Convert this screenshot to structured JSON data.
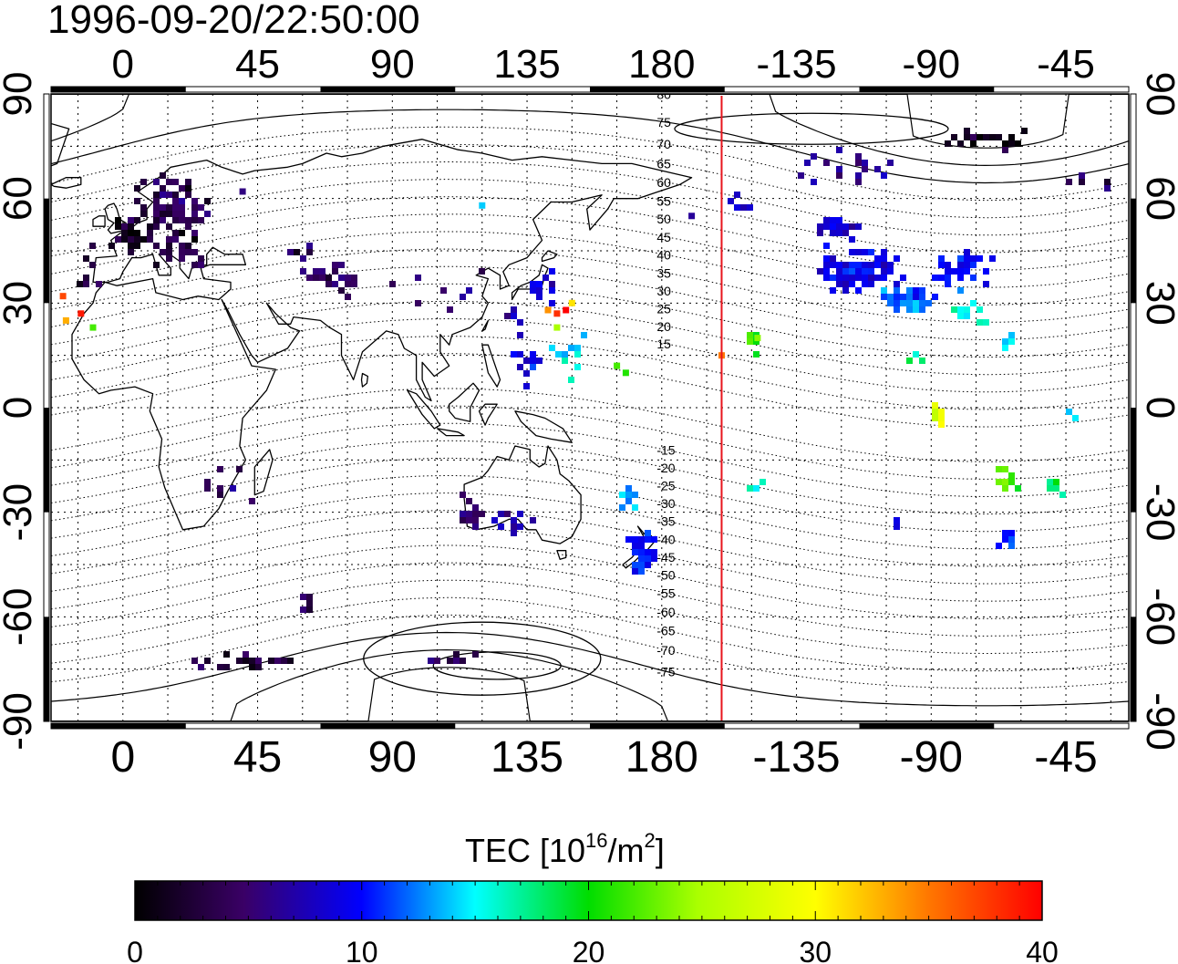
{
  "title": "1996-09-20/22:50:00",
  "map": {
    "top_lon_ticks": [
      "0",
      "45",
      "90",
      "135",
      "180",
      "-135",
      "-90",
      "-45"
    ],
    "bottom_lon_ticks": [
      "0",
      "45",
      "90",
      "135",
      "180",
      "-135",
      "-90",
      "-45"
    ],
    "left_lat_ticks": [
      "90",
      "60",
      "30",
      "0",
      "-30",
      "-60",
      "-90"
    ],
    "right_lat_ticks": [
      "90",
      "60",
      "30",
      "0",
      "-30",
      "-60",
      "-90"
    ],
    "lon_range": [
      -24,
      336
    ],
    "lat_range": [
      -90,
      90
    ],
    "grid": "dotted every 15 degrees",
    "contour_labels": [
      "80",
      "75",
      "70",
      "65",
      "60",
      "55",
      "50",
      "45",
      "40",
      "35",
      "30",
      "25",
      "20",
      "15",
      "-15",
      "-20",
      "-25",
      "-30",
      "-35",
      "-40",
      "-45",
      "-50",
      "-55",
      "-60",
      "-65",
      "-70",
      "-75"
    ],
    "contour_label_lats": [
      80,
      75,
      70,
      65,
      60,
      55,
      50,
      45,
      40,
      35,
      30,
      25,
      20,
      15,
      -15,
      -20,
      -25,
      -30,
      -35,
      -40,
      -45,
      -50,
      -55,
      -60,
      -65,
      -70,
      -75
    ],
    "terminator_lon": -160,
    "terminator_color": "#e8141c"
  },
  "chart_data": {
    "type": "heatmap",
    "title": "1996-09-20/22:50:00",
    "quantity": "TEC",
    "clusters": [
      {
        "lon": 15,
        "lat": 58,
        "tec": 3,
        "n": 90,
        "sx": 10,
        "sy": 8
      },
      {
        "lon": 2,
        "lat": 50,
        "tec": 1.5,
        "n": 30,
        "sx": 6,
        "sy": 4
      },
      {
        "lon": 20,
        "lat": 45,
        "tec": 3,
        "n": 20,
        "sx": 8,
        "sy": 5
      },
      {
        "lon": -12,
        "lat": 40,
        "tec": 2,
        "n": 8,
        "sx": 6,
        "sy": 6
      },
      {
        "lon": 70,
        "lat": 38,
        "tec": 4,
        "n": 25,
        "sx": 10,
        "sy": 4
      },
      {
        "lon": 60,
        "lat": 45,
        "tec": 3.5,
        "n": 6,
        "sx": 6,
        "sy": 3
      },
      {
        "lon": 110,
        "lat": 35,
        "tec": 4.5,
        "n": 8,
        "sx": 20,
        "sy": 8
      },
      {
        "lon": 140,
        "lat": 36,
        "tec": 8,
        "n": 12,
        "sx": 5,
        "sy": 4
      },
      {
        "lon": 130,
        "lat": 25,
        "tec": 6,
        "n": 6,
        "sx": 6,
        "sy": 5
      },
      {
        "lon": 150,
        "lat": 15,
        "tec": 15,
        "n": 12,
        "sx": 6,
        "sy": 6
      },
      {
        "lon": 135,
        "lat": 12,
        "tec": 9,
        "n": 10,
        "sx": 6,
        "sy": 6
      },
      {
        "lon": 128,
        "lat": -32,
        "tec": 6,
        "n": 15,
        "sx": 12,
        "sy": 4
      },
      {
        "lon": 115,
        "lat": -30,
        "tec": 4,
        "n": 12,
        "sx": 3,
        "sy": 4
      },
      {
        "lon": 172,
        "lat": -42,
        "tec": 10,
        "n": 30,
        "sx": 5,
        "sy": 6
      },
      {
        "lon": 168,
        "lat": -25,
        "tec": 12,
        "n": 10,
        "sx": 4,
        "sy": 3
      },
      {
        "lon": 30,
        "lat": -20,
        "tec": 4,
        "n": 8,
        "sx": 10,
        "sy": 10
      },
      {
        "lon": 60,
        "lat": -55,
        "tec": 2,
        "n": 6,
        "sx": 4,
        "sy": 2
      },
      {
        "lon": 40,
        "lat": -72,
        "tec": 2.5,
        "n": 25,
        "sx": 20,
        "sy": 2
      },
      {
        "lon": 110,
        "lat": -70,
        "tec": 3,
        "n": 8,
        "sx": 8,
        "sy": 2
      },
      {
        "lon": -115,
        "lat": 40,
        "tec": 9,
        "n": 110,
        "sx": 12,
        "sy": 5
      },
      {
        "lon": -100,
        "lat": 33,
        "tec": 12,
        "n": 50,
        "sx": 8,
        "sy": 4
      },
      {
        "lon": -80,
        "lat": 40,
        "tec": 10,
        "n": 35,
        "sx": 8,
        "sy": 6
      },
      {
        "lon": -122,
        "lat": 52,
        "tec": 8,
        "n": 40,
        "sx": 6,
        "sy": 3
      },
      {
        "lon": -120,
        "lat": 70,
        "tec": 6,
        "n": 18,
        "sx": 18,
        "sy": 5
      },
      {
        "lon": -80,
        "lat": 28,
        "tec": 16,
        "n": 12,
        "sx": 6,
        "sy": 3
      },
      {
        "lon": -70,
        "lat": 78,
        "tec": 1.5,
        "n": 18,
        "sx": 18,
        "sy": 3
      },
      {
        "lon": -65,
        "lat": 20,
        "tec": 14,
        "n": 5,
        "sx": 3,
        "sy": 3
      },
      {
        "lon": -88,
        "lat": 0,
        "tec": 28,
        "n": 6,
        "sx": 2,
        "sy": 5
      },
      {
        "lon": -65,
        "lat": -20,
        "tec": 22,
        "n": 10,
        "sx": 3,
        "sy": 3
      },
      {
        "lon": -50,
        "lat": -22,
        "tec": 17,
        "n": 8,
        "sx": 4,
        "sy": 3
      },
      {
        "lon": -65,
        "lat": -37,
        "tec": 10,
        "n": 10,
        "sx": 4,
        "sy": 3
      },
      {
        "lon": -150,
        "lat": 20,
        "tec": 22,
        "n": 6,
        "sx": 3,
        "sy": 3
      },
      {
        "lon": -150,
        "lat": -22,
        "tec": 16,
        "n": 4,
        "sx": 2,
        "sy": 2
      },
      {
        "lon": -155,
        "lat": 60,
        "tec": 8,
        "n": 8,
        "sx": 8,
        "sy": 3
      },
      {
        "lon": -40,
        "lat": 65,
        "tec": 3,
        "n": 6,
        "sx": 8,
        "sy": 3
      },
      {
        "lon": -103,
        "lat": -33,
        "tec": 9,
        "n": 5,
        "sx": 3,
        "sy": 2
      },
      {
        "lon": -45,
        "lat": 0,
        "tec": 14,
        "n": 3,
        "sx": 2,
        "sy": 2
      },
      {
        "lon": -95,
        "lat": 16,
        "tec": 18,
        "n": 4,
        "sx": 2,
        "sy": 2
      }
    ],
    "points": [
      {
        "lon": -20,
        "lat": 32,
        "tec": 37
      },
      {
        "lon": -19,
        "lat": 25,
        "tec": 33
      },
      {
        "lon": -14,
        "lat": 27,
        "tec": 39
      },
      {
        "lon": -10,
        "lat": 23,
        "tec": 22
      },
      {
        "lon": 142,
        "lat": 28,
        "tec": 34
      },
      {
        "lon": 145,
        "lat": 27,
        "tec": 38
      },
      {
        "lon": 148,
        "lat": 28,
        "tec": 40
      },
      {
        "lon": 150,
        "lat": 30,
        "tec": 31
      },
      {
        "lon": 145,
        "lat": 23,
        "tec": 25
      },
      {
        "lon": 165,
        "lat": 12,
        "tec": 22
      },
      {
        "lon": 168,
        "lat": 10,
        "tec": 21
      },
      {
        "lon": -160,
        "lat": 15,
        "tec": 35
      },
      {
        "lon": -148,
        "lat": 20,
        "tec": 24
      },
      {
        "lon": 120,
        "lat": 58,
        "tec": 14
      },
      {
        "lon": 40,
        "lat": 62,
        "tec": 5
      },
      {
        "lon": -170,
        "lat": 55,
        "tec": 6
      }
    ]
  },
  "colorbar": {
    "label_main": "TEC  [10",
    "label_sup1": "16",
    "label_mid": "/m",
    "label_sup2": "2",
    "label_end": "]",
    "ticks": [
      "0",
      "10",
      "20",
      "30",
      "40"
    ],
    "range": [
      0,
      40
    ]
  },
  "colors": {
    "frame": "#000000",
    "coast": "#000000",
    "grid": "#000000"
  }
}
